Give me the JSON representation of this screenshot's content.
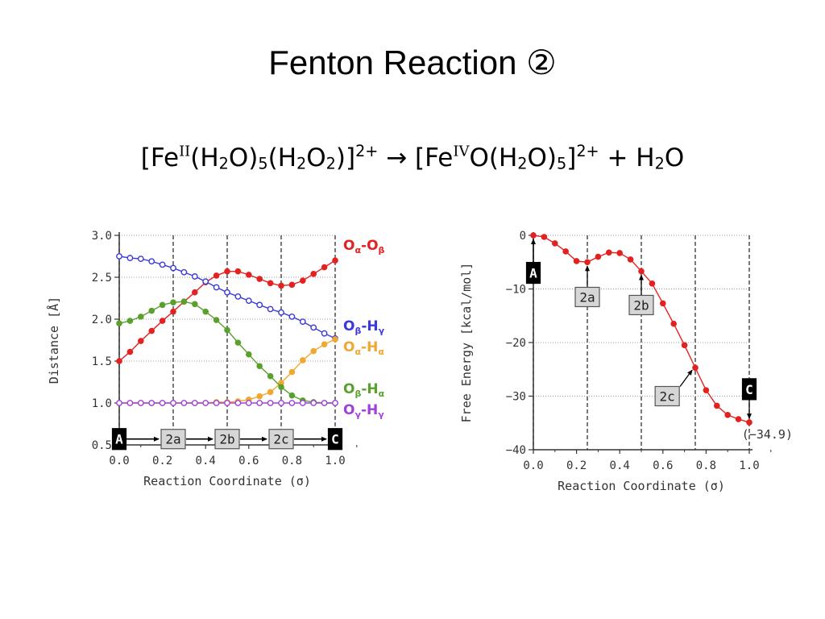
{
  "title": "Fenton Reaction ②",
  "formula": {
    "p1": "[Fe",
    "s1": "II",
    "p2": "(H",
    "n1": "2",
    "p3": "O)",
    "n2": "5",
    "p4": "(H",
    "n3": "2",
    "p5": "O",
    "n4": "2",
    "p6": ")]",
    "c1": "2+",
    "p7": " → [Fe",
    "s2": "IV",
    "p8": "O(H",
    "n5": "2",
    "p9": "O)",
    "n6": "5",
    "p10": "]",
    "c2": "2+",
    "p11": " + H",
    "n7": "2",
    "p12": "O"
  },
  "chart_data": [
    {
      "type": "line",
      "xlabel": "Reaction Coordinate (σ)",
      "ylabel": "Distance [Å]",
      "xlim": [
        0.0,
        1.0
      ],
      "ylim": [
        0.5,
        3.0
      ],
      "xticks": [
        "0.0",
        "0.2",
        "0.4",
        "0.6",
        "0.8",
        "1.0"
      ],
      "yticks": [
        "0.5",
        "1.0",
        "1.5",
        "2.0",
        "2.5",
        "3.0"
      ],
      "grid": true,
      "vlines": [
        0.0,
        0.25,
        0.5,
        0.75,
        1.0
      ],
      "x": [
        0.0,
        0.05,
        0.1,
        0.15,
        0.2,
        0.25,
        0.3,
        0.35,
        0.4,
        0.45,
        0.5,
        0.55,
        0.6,
        0.65,
        0.7,
        0.75,
        0.8,
        0.85,
        0.9,
        0.95,
        1.0
      ],
      "series": [
        {
          "label": {
            "a": "O",
            "as": "α",
            "d": "-",
            "b": "O",
            "bs": "β"
          },
          "color": "#e32121",
          "marker": "filled",
          "values": [
            1.5,
            1.61,
            1.74,
            1.86,
            1.98,
            2.09,
            2.21,
            2.32,
            2.44,
            2.52,
            2.57,
            2.57,
            2.53,
            2.48,
            2.43,
            2.4,
            2.41,
            2.46,
            2.54,
            2.62,
            2.7
          ]
        },
        {
          "label": {
            "a": "O",
            "as": "β",
            "d": "-",
            "b": "H",
            "bs": "γ"
          },
          "color": "#3a3ad8",
          "marker": "open",
          "values": [
            2.75,
            2.73,
            2.72,
            2.69,
            2.65,
            2.61,
            2.56,
            2.51,
            2.45,
            2.38,
            2.32,
            2.27,
            2.22,
            2.17,
            2.12,
            2.08,
            2.03,
            1.97,
            1.9,
            1.83,
            1.77
          ]
        },
        {
          "label": {
            "a": "O",
            "as": "α",
            "d": "-",
            "b": "H",
            "bs": "α"
          },
          "color": "#f0a830",
          "marker": "filled",
          "values": [
            1.0,
            1.0,
            1.0,
            1.0,
            1.0,
            1.0,
            1.0,
            1.0,
            1.0,
            1.01,
            1.01,
            1.02,
            1.04,
            1.08,
            1.13,
            1.24,
            1.37,
            1.51,
            1.62,
            1.7,
            1.76
          ]
        },
        {
          "label": {
            "a": "O",
            "as": "β",
            "d": "-",
            "b": "H",
            "bs": "α"
          },
          "color": "#5aa02c",
          "marker": "filled",
          "values": [
            1.95,
            1.98,
            2.03,
            2.1,
            2.17,
            2.2,
            2.21,
            2.18,
            2.09,
            1.99,
            1.87,
            1.72,
            1.58,
            1.44,
            1.32,
            1.19,
            1.09,
            1.03,
            1.01,
            1.0,
            1.0
          ]
        },
        {
          "label": {
            "a": "O",
            "as": "γ",
            "d": "-",
            "b": "H",
            "bs": "γ"
          },
          "color": "#a040d8",
          "marker": "open",
          "values": [
            1.0,
            1.0,
            1.0,
            1.0,
            1.0,
            1.0,
            1.0,
            1.0,
            1.0,
            1.0,
            1.0,
            1.0,
            1.0,
            1.0,
            1.0,
            1.0,
            1.0,
            1.0,
            1.0,
            1.0,
            1.0
          ]
        }
      ],
      "states": [
        {
          "text": "A",
          "x": 0.0,
          "style": "dark"
        },
        {
          "text": "2a",
          "x": 0.25,
          "style": "light"
        },
        {
          "text": "2b",
          "x": 0.5,
          "style": "light"
        },
        {
          "text": "2c",
          "x": 0.75,
          "style": "light"
        },
        {
          "text": "C",
          "x": 1.0,
          "style": "dark"
        }
      ],
      "states_y": 0.57
    },
    {
      "type": "line",
      "xlabel": "Reaction Coordinate (σ)",
      "ylabel": "Free Energy [kcal/mol]",
      "xlim": [
        0.0,
        1.0
      ],
      "ylim": [
        -40,
        0
      ],
      "xticks": [
        "0.0",
        "0.2",
        "0.4",
        "0.6",
        "0.8",
        "1.0"
      ],
      "yticks": [
        "0",
        "−10",
        "−20",
        "−30",
        "−40"
      ],
      "grid": true,
      "vlines": [
        0.0,
        0.25,
        0.5,
        0.75,
        1.0
      ],
      "x": [
        0.0,
        0.05,
        0.1,
        0.15,
        0.2,
        0.25,
        0.3,
        0.35,
        0.4,
        0.45,
        0.5,
        0.55,
        0.6,
        0.65,
        0.7,
        0.75,
        0.8,
        0.85,
        0.9,
        0.95,
        1.0
      ],
      "series": [
        {
          "color": "#e32121",
          "marker": "filled",
          "values": [
            0.0,
            -0.3,
            -1.5,
            -3.0,
            -4.8,
            -5.0,
            -4.0,
            -3.2,
            -3.3,
            -4.5,
            -6.7,
            -9.0,
            -12.7,
            -16.5,
            -20.5,
            -24.7,
            -28.9,
            -31.8,
            -33.5,
            -34.3,
            -34.9
          ]
        }
      ],
      "callouts": [
        {
          "text": "A",
          "x": 0.0,
          "y": 0.0,
          "lx": 0.0,
          "ly": -7.0,
          "style": "dark"
        },
        {
          "text": "2a",
          "x": 0.25,
          "y": -5.0,
          "lx": 0.25,
          "ly": -11.5,
          "style": "light"
        },
        {
          "text": "2b",
          "x": 0.5,
          "y": -6.7,
          "lx": 0.5,
          "ly": -13.0,
          "style": "light"
        },
        {
          "text": "2c",
          "x": 0.75,
          "y": -24.7,
          "lx": 0.62,
          "ly": -30.0,
          "style": "light"
        },
        {
          "text": "C",
          "x": 1.0,
          "y": -34.9,
          "lx": 1.0,
          "ly": -28.7,
          "style": "dark"
        }
      ],
      "final_value_label": "(−34.9)"
    }
  ]
}
